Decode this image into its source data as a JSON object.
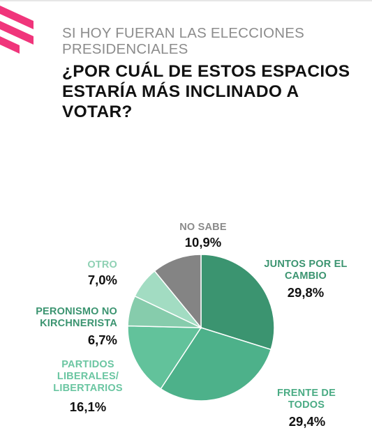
{
  "header": {
    "subtitle": "SI HOY FUERAN LAS ELECCIONES PRESIDENCIALES",
    "title": "¿POR CUÁL DE ESTOS ESPACIOS ESTARÍA MÁS INCLINADO A VOTAR?"
  },
  "colors": {
    "brand_pink": "#f0357b",
    "subtitle_gray": "#8c8c8c"
  },
  "chart_data": {
    "type": "pie",
    "title": "¿POR CUÁL DE ESTOS ESPACIOS ESTARÍA MÁS INCLINADO A VOTAR?",
    "slices": [
      {
        "label": "JUNTOS POR EL CAMBIO",
        "value": 29.8,
        "value_label": "29,8%",
        "color": "#3b9470",
        "label_color": "#3b9470"
      },
      {
        "label": "FRENTE DE TODOS",
        "value": 29.4,
        "value_label": "29,4%",
        "color": "#4db18a",
        "label_color": "#4aab84"
      },
      {
        "label": "PARTIDOS LIBERALES/ LIBERTARIOS",
        "value": 16.1,
        "value_label": "16,1%",
        "color": "#62c29b",
        "label_color": "#6bc6a2"
      },
      {
        "label": "PERONISMO NO KIRCHNERISTA",
        "value": 6.7,
        "value_label": "6,7%",
        "color": "#86ccac",
        "label_color": "#3b9470"
      },
      {
        "label": "OTRO",
        "value": 7.0,
        "value_label": "7,0%",
        "color": "#a2dcc2",
        "label_color": "#8fd1b4"
      },
      {
        "label": "NO SABE",
        "value": 10.9,
        "value_label": "10,9%",
        "color": "#848484",
        "label_color": "#8a8a8a"
      }
    ]
  }
}
